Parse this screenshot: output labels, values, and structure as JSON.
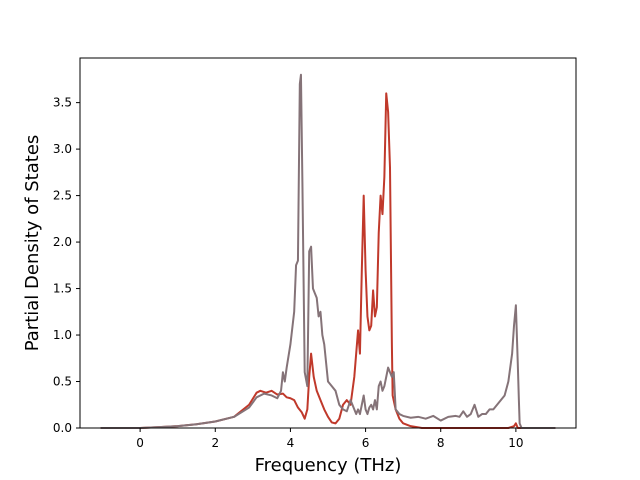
{
  "chart_data": {
    "type": "line",
    "title": "",
    "xlabel": "Frequency (THz)",
    "ylabel": "Partial Density of States",
    "xlim": [
      -1.6,
      11.6
    ],
    "ylim": [
      0,
      3.98
    ],
    "xticks": [
      0,
      2,
      4,
      6,
      8,
      10
    ],
    "xtick_labels": [
      "0",
      "2",
      "4",
      "6",
      "8",
      "10"
    ],
    "yticks": [
      0.0,
      0.5,
      1.0,
      1.5,
      2.0,
      2.5,
      3.0,
      3.5
    ],
    "ytick_labels": [
      "0.0",
      "0.5",
      "1.0",
      "1.5",
      "2.0",
      "2.5",
      "3.0",
      "3.5"
    ],
    "grid": false,
    "legend": false,
    "series": [
      {
        "color": "#c0392b",
        "x": [
          -1.05,
          0.0,
          0.5,
          1.0,
          1.5,
          2.0,
          2.5,
          2.9,
          3.1,
          3.2,
          3.35,
          3.5,
          3.65,
          3.8,
          3.9,
          4.0,
          4.1,
          4.2,
          4.3,
          4.38,
          4.45,
          4.5,
          4.55,
          4.62,
          4.7,
          4.8,
          4.9,
          5.0,
          5.1,
          5.2,
          5.3,
          5.4,
          5.5,
          5.6,
          5.7,
          5.75,
          5.8,
          5.85,
          5.9,
          5.95,
          6.0,
          6.05,
          6.1,
          6.15,
          6.2,
          6.25,
          6.3,
          6.35,
          6.4,
          6.45,
          6.5,
          6.55,
          6.6,
          6.65,
          6.7,
          6.72,
          6.8,
          6.9,
          7.0,
          7.2,
          7.5,
          8.0,
          8.5,
          9.0,
          9.5,
          9.8,
          9.95,
          10.0,
          10.05,
          11.05
        ],
        "y": [
          0.0,
          0.0,
          0.01,
          0.02,
          0.04,
          0.07,
          0.12,
          0.25,
          0.38,
          0.4,
          0.38,
          0.4,
          0.36,
          0.37,
          0.33,
          0.32,
          0.3,
          0.22,
          0.17,
          0.1,
          0.2,
          0.55,
          0.8,
          0.55,
          0.4,
          0.3,
          0.2,
          0.12,
          0.06,
          0.05,
          0.1,
          0.25,
          0.3,
          0.25,
          0.55,
          0.8,
          1.05,
          0.8,
          1.7,
          2.5,
          1.7,
          1.2,
          1.05,
          1.1,
          1.48,
          1.2,
          1.3,
          2.1,
          2.5,
          2.3,
          2.7,
          3.6,
          3.4,
          2.8,
          0.9,
          0.35,
          0.2,
          0.1,
          0.05,
          0.02,
          0.0,
          0.0,
          0.0,
          0.0,
          0.0,
          0.0,
          0.02,
          0.05,
          0.0,
          0.0
        ]
      },
      {
        "color": "#857378",
        "x": [
          -1.05,
          0.0,
          0.5,
          1.0,
          1.5,
          2.0,
          2.5,
          2.9,
          3.1,
          3.3,
          3.5,
          3.65,
          3.75,
          3.8,
          3.85,
          3.9,
          4.0,
          4.1,
          4.15,
          4.2,
          4.25,
          4.28,
          4.32,
          4.38,
          4.45,
          4.5,
          4.55,
          4.6,
          4.65,
          4.7,
          4.75,
          4.8,
          4.85,
          4.9,
          4.95,
          5.0,
          5.1,
          5.2,
          5.3,
          5.4,
          5.5,
          5.6,
          5.7,
          5.75,
          5.8,
          5.85,
          5.9,
          5.95,
          6.0,
          6.05,
          6.1,
          6.15,
          6.2,
          6.25,
          6.3,
          6.35,
          6.4,
          6.45,
          6.5,
          6.55,
          6.6,
          6.65,
          6.7,
          6.75,
          6.8,
          6.9,
          7.0,
          7.2,
          7.4,
          7.6,
          7.8,
          8.0,
          8.2,
          8.4,
          8.5,
          8.6,
          8.7,
          8.8,
          8.9,
          9.0,
          9.1,
          9.2,
          9.3,
          9.4,
          9.5,
          9.6,
          9.7,
          9.8,
          9.85,
          9.9,
          9.95,
          10.0,
          10.05,
          10.08,
          10.1,
          10.15,
          11.05
        ],
        "y": [
          0.0,
          0.0,
          0.01,
          0.02,
          0.04,
          0.07,
          0.12,
          0.22,
          0.33,
          0.37,
          0.35,
          0.32,
          0.4,
          0.6,
          0.5,
          0.65,
          0.9,
          1.25,
          1.75,
          1.8,
          3.7,
          3.8,
          2.6,
          0.6,
          0.45,
          1.9,
          1.95,
          1.5,
          1.45,
          1.4,
          1.2,
          1.25,
          1.0,
          0.9,
          0.7,
          0.5,
          0.45,
          0.4,
          0.25,
          0.2,
          0.18,
          0.3,
          0.2,
          0.15,
          0.2,
          0.15,
          0.25,
          0.35,
          0.2,
          0.15,
          0.22,
          0.25,
          0.2,
          0.3,
          0.2,
          0.45,
          0.5,
          0.4,
          0.45,
          0.55,
          0.65,
          0.6,
          0.55,
          0.6,
          0.2,
          0.15,
          0.13,
          0.11,
          0.12,
          0.1,
          0.13,
          0.08,
          0.12,
          0.13,
          0.12,
          0.18,
          0.12,
          0.15,
          0.25,
          0.12,
          0.15,
          0.15,
          0.2,
          0.2,
          0.25,
          0.3,
          0.35,
          0.5,
          0.65,
          0.8,
          1.1,
          1.32,
          0.7,
          0.3,
          0.05,
          0.0,
          0.0
        ]
      }
    ]
  }
}
